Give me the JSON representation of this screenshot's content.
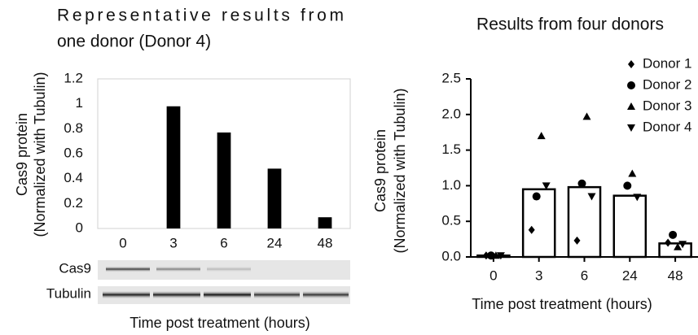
{
  "chart_data": [
    {
      "type": "bar",
      "title": [
        "Representative results from",
        "one donor (Donor 4)"
      ],
      "ylabel": [
        "Cas9 protein",
        "(Normalized with Tubulin)"
      ],
      "xlabel": "Time post treatment (hours)",
      "categories": [
        "0",
        "3",
        "6",
        "24",
        "48"
      ],
      "values": [
        0,
        0.98,
        0.77,
        0.48,
        0.09
      ],
      "color": "#000000",
      "ylim": [
        0,
        1.2
      ],
      "yticks": [
        0,
        0.2,
        0.4,
        0.6,
        0.8,
        1,
        1.2
      ],
      "blot_labels": [
        "Cas9",
        "Tubulin"
      ]
    },
    {
      "type": "barscatter",
      "title": "Results from four donors",
      "ylabel": [
        "Cas9 protein",
        "(Normalized with Tubulin)"
      ],
      "xlabel": "Time post treatment (hours)",
      "categories": [
        "0",
        "3",
        "6",
        "24",
        "48"
      ],
      "values": [
        0.02,
        0.95,
        0.98,
        0.86,
        0.19
      ],
      "color": "#000000",
      "ylim": [
        0,
        2.5
      ],
      "yticks": [
        {
          "value": 0,
          "label": "0.0"
        },
        {
          "value": 0.5,
          "label": "0.5"
        },
        {
          "value": 1,
          "label": "1.0"
        },
        {
          "value": 1.5,
          "label": "1.5"
        },
        {
          "value": 2,
          "label": "2.0"
        },
        {
          "value": 2.5,
          "label": "2.5"
        }
      ],
      "series": [
        {
          "name": "Donor 1",
          "marker": "diamond",
          "color": "#000000",
          "values": [
            0.02,
            0.38,
            0.23,
            null,
            0.2
          ]
        },
        {
          "name": "Donor 2",
          "marker": "circle",
          "color": "#000000",
          "values": [
            0.02,
            0.85,
            1.03,
            1.0,
            0.31
          ]
        },
        {
          "name": "Donor 3",
          "marker": "triangle-up",
          "color": "#000000",
          "values": [
            0.02,
            1.7,
            1.97,
            1.17,
            0.14
          ]
        },
        {
          "name": "Donor 4",
          "marker": "triangle-down",
          "color": "#000000",
          "values": [
            0.02,
            1.0,
            0.85,
            0.84,
            0.18
          ]
        }
      ],
      "legend": "top-right"
    }
  ]
}
